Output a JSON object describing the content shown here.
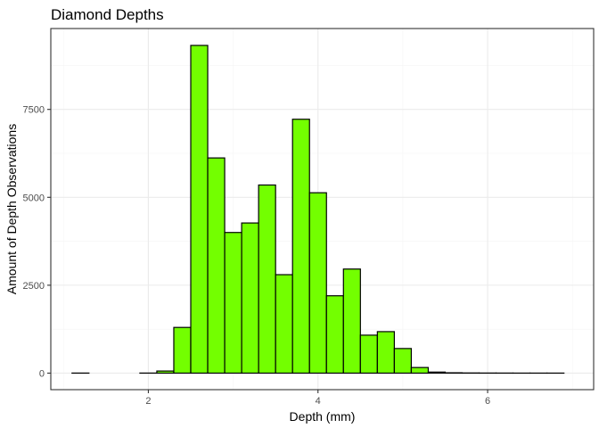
{
  "chart_data": {
    "type": "bar",
    "title": "Diamond Depths",
    "xlabel": "Depth (mm)",
    "ylabel": "Amount of Depth Observations",
    "bar_fill": "#73ff00",
    "bar_outline": "#000000",
    "xlim": [
      0.85,
      7.25
    ],
    "ylim": [
      -470,
      9800
    ],
    "x_ticks": [
      2,
      4,
      6
    ],
    "y_ticks": [
      0,
      2500,
      5000,
      7500
    ],
    "grid": true,
    "bins": [
      {
        "x0": 1.1,
        "x1": 1.3,
        "count": 2
      },
      {
        "x0": 1.3,
        "x1": 1.5,
        "count": 0
      },
      {
        "x0": 1.5,
        "x1": 1.7,
        "count": 0
      },
      {
        "x0": 1.7,
        "x1": 1.9,
        "count": 0
      },
      {
        "x0": 1.9,
        "x1": 2.1,
        "count": 2
      },
      {
        "x0": 2.1,
        "x1": 2.3,
        "count": 60
      },
      {
        "x0": 2.3,
        "x1": 2.5,
        "count": 1300
      },
      {
        "x0": 2.5,
        "x1": 2.7,
        "count": 9320
      },
      {
        "x0": 2.7,
        "x1": 2.9,
        "count": 6120
      },
      {
        "x0": 2.9,
        "x1": 3.1,
        "count": 4000
      },
      {
        "x0": 3.1,
        "x1": 3.3,
        "count": 4270
      },
      {
        "x0": 3.3,
        "x1": 3.5,
        "count": 5350
      },
      {
        "x0": 3.5,
        "x1": 3.7,
        "count": 2800
      },
      {
        "x0": 3.7,
        "x1": 3.9,
        "count": 7220
      },
      {
        "x0": 3.9,
        "x1": 4.1,
        "count": 5130
      },
      {
        "x0": 4.1,
        "x1": 4.3,
        "count": 2200
      },
      {
        "x0": 4.3,
        "x1": 4.5,
        "count": 2960
      },
      {
        "x0": 4.5,
        "x1": 4.7,
        "count": 1080
      },
      {
        "x0": 4.7,
        "x1": 4.9,
        "count": 1180
      },
      {
        "x0": 4.9,
        "x1": 5.1,
        "count": 700
      },
      {
        "x0": 5.1,
        "x1": 5.3,
        "count": 160
      },
      {
        "x0": 5.3,
        "x1": 5.5,
        "count": 30
      },
      {
        "x0": 5.5,
        "x1": 5.7,
        "count": 10
      },
      {
        "x0": 5.7,
        "x1": 5.9,
        "count": 5
      },
      {
        "x0": 5.9,
        "x1": 6.1,
        "count": 3
      },
      {
        "x0": 6.1,
        "x1": 6.3,
        "count": 2
      },
      {
        "x0": 6.3,
        "x1": 6.5,
        "count": 1
      },
      {
        "x0": 6.5,
        "x1": 6.7,
        "count": 1
      },
      {
        "x0": 6.7,
        "x1": 6.9,
        "count": 1
      }
    ]
  }
}
